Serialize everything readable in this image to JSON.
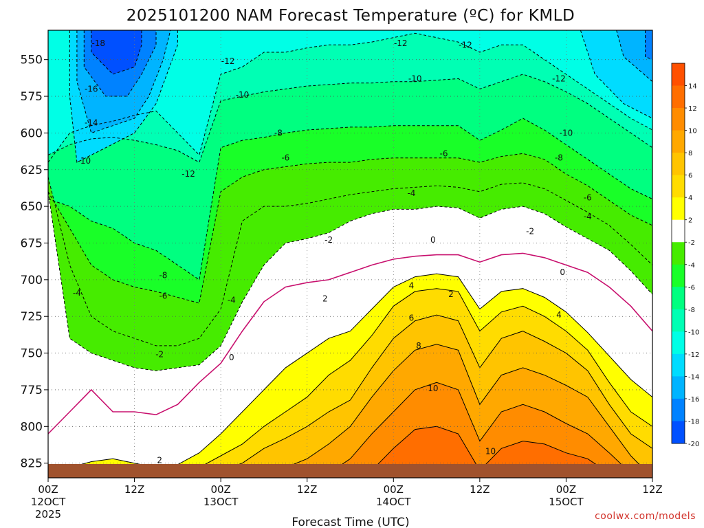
{
  "chart_data": {
    "type": "contour",
    "title": "2025101200 NAM Forecast Temperature (ºC) for KMLD",
    "xlabel": "Forecast Time (UTC)",
    "ylabel": "",
    "credit": "coolwx.com/models",
    "x_hours": [
      0,
      84
    ],
    "x_ticks": [
      {
        "hour": 0,
        "time": "00Z",
        "day": "12OCT",
        "year": "2025"
      },
      {
        "hour": 12,
        "time": "12Z",
        "day": "",
        "year": ""
      },
      {
        "hour": 24,
        "time": "00Z",
        "day": "13OCT",
        "year": ""
      },
      {
        "hour": 36,
        "time": "12Z",
        "day": "",
        "year": ""
      },
      {
        "hour": 48,
        "time": "00Z",
        "day": "14OCT",
        "year": ""
      },
      {
        "hour": 60,
        "time": "12Z",
        "day": "",
        "year": ""
      },
      {
        "hour": 72,
        "time": "00Z",
        "day": "15OCT",
        "year": ""
      },
      {
        "hour": 84,
        "time": "12Z",
        "day": "",
        "year": ""
      }
    ],
    "p_range": [
      530,
      835
    ],
    "p_ticks": [
      "550",
      "575",
      "600",
      "625",
      "650",
      "675",
      "700",
      "725",
      "750",
      "775",
      "800",
      "825"
    ],
    "temp_levels": [
      -20,
      -18,
      -16,
      -14,
      -12,
      -10,
      -8,
      -6,
      -4,
      -2,
      2,
      4,
      6,
      8,
      10,
      12,
      14
    ],
    "colorbar_labels": [
      "14",
      "12",
      "10",
      "8",
      "6",
      "4",
      "2",
      "-2",
      "-4",
      "-6",
      "-8",
      "-10",
      "-12",
      "-14",
      "-16",
      "-18",
      "-20"
    ],
    "colorbar_colors": [
      "#ff5000",
      "#ff6e00",
      "#ff8c00",
      "#ffa800",
      "#ffc400",
      "#ffdc00",
      "#ffff00",
      "#ffffff",
      "#46ec00",
      "#19ff28",
      "#00ff80",
      "#00ffb4",
      "#00ffe6",
      "#00dcff",
      "#00b4ff",
      "#0082ff",
      "#0050ff"
    ],
    "sample_hours": [
      0,
      3,
      6,
      9,
      12,
      15,
      18,
      21,
      24,
      27,
      30,
      33,
      36,
      39,
      42,
      45,
      48,
      51,
      54,
      57,
      60,
      63,
      66,
      69,
      72,
      75,
      78,
      81,
      84
    ],
    "isotherm_pressure": {
      "-12": [
        620,
        600,
        595,
        592,
        588,
        585,
        600,
        615,
        560,
        555,
        545,
        545,
        542,
        540,
        540,
        538,
        535,
        532,
        535,
        538,
        545,
        540,
        540,
        550,
        560,
        570,
        580,
        590,
        598
      ],
      "-10": [
        615,
        608,
        604,
        603,
        605,
        608,
        612,
        620,
        578,
        575,
        572,
        570,
        568,
        567,
        566,
        566,
        565,
        565,
        564,
        563,
        570,
        565,
        560,
        565,
        572,
        580,
        590,
        600,
        610
      ],
      "-8": [
        645,
        650,
        660,
        665,
        675,
        680,
        690,
        700,
        610,
        605,
        603,
        600,
        598,
        597,
        596,
        596,
        595,
        595,
        595,
        595,
        605,
        598,
        590,
        598,
        608,
        618,
        628,
        638,
        645
      ],
      "-6": [
        640,
        665,
        690,
        700,
        705,
        708,
        712,
        716,
        640,
        630,
        625,
        623,
        621,
        620,
        620,
        618,
        617,
        617,
        617,
        617,
        620,
        616,
        614,
        618,
        628,
        636,
        646,
        656,
        663
      ],
      "-4": [
        630,
        690,
        725,
        735,
        740,
        745,
        745,
        740,
        720,
        660,
        650,
        650,
        648,
        645,
        642,
        640,
        638,
        637,
        636,
        637,
        640,
        635,
        634,
        638,
        646,
        654,
        663,
        676,
        690
      ],
      "-2": [
        640,
        740,
        750,
        755,
        760,
        762,
        760,
        758,
        745,
        715,
        690,
        675,
        672,
        668,
        660,
        655,
        652,
        652,
        650,
        651,
        658,
        652,
        650,
        655,
        664,
        672,
        680,
        694,
        710
      ],
      "0": [
        805,
        790,
        775,
        790,
        790,
        792,
        785,
        770,
        757,
        735,
        715,
        705,
        702,
        700,
        695,
        690,
        686,
        684,
        683,
        683,
        688,
        683,
        682,
        685,
        690,
        695,
        705,
        718,
        735
      ],
      "2": [
        832,
        828,
        824,
        822,
        825,
        828,
        826,
        818,
        805,
        790,
        775,
        760,
        750,
        740,
        735,
        720,
        705,
        698,
        696,
        698,
        720,
        708,
        706,
        712,
        722,
        736,
        752,
        768,
        780
      ],
      "4": [
        840,
        840,
        840,
        840,
        840,
        840,
        836,
        828,
        820,
        812,
        800,
        790,
        780,
        765,
        755,
        738,
        718,
        708,
        706,
        708,
        735,
        722,
        718,
        725,
        735,
        748,
        770,
        790,
        800
      ],
      "6": [
        840,
        840,
        840,
        840,
        840,
        840,
        840,
        840,
        830,
        825,
        815,
        808,
        800,
        790,
        782,
        760,
        740,
        728,
        724,
        728,
        760,
        740,
        735,
        742,
        750,
        762,
        785,
        805,
        815
      ],
      "8": [
        840,
        840,
        840,
        840,
        840,
        840,
        840,
        840,
        840,
        840,
        835,
        828,
        822,
        812,
        800,
        780,
        762,
        748,
        744,
        748,
        785,
        765,
        760,
        765,
        772,
        780,
        800,
        820,
        835
      ],
      "10": [
        840,
        840,
        840,
        840,
        840,
        840,
        840,
        840,
        840,
        840,
        840,
        840,
        840,
        832,
        822,
        805,
        790,
        775,
        770,
        775,
        810,
        790,
        785,
        790,
        798,
        805,
        818,
        832,
        840
      ],
      "12": [
        840,
        840,
        840,
        840,
        840,
        840,
        840,
        840,
        840,
        840,
        840,
        840,
        840,
        840,
        840,
        830,
        815,
        802,
        800,
        805,
        830,
        815,
        810,
        812,
        818,
        822,
        832,
        840,
        840
      ],
      "14": [
        840,
        840,
        840,
        840,
        840,
        840,
        840,
        840,
        840,
        840,
        840,
        840,
        840,
        840,
        840,
        840,
        835,
        830,
        828,
        832,
        840,
        836,
        832,
        832,
        835,
        838,
        840,
        840,
        840
      ]
    },
    "contour_labels": [
      {
        "text": "-18",
        "hour": 7,
        "p": 539
      },
      {
        "text": "-16",
        "hour": 6,
        "p": 570
      },
      {
        "text": "-14",
        "hour": 6,
        "p": 593
      },
      {
        "text": "-10",
        "hour": 5,
        "p": 619
      },
      {
        "text": "-12",
        "hour": 19.5,
        "p": 628
      },
      {
        "text": "-12",
        "hour": 25,
        "p": 551
      },
      {
        "text": "-10",
        "hour": 27,
        "p": 574
      },
      {
        "text": "-8",
        "hour": 32,
        "p": 600
      },
      {
        "text": "-6",
        "hour": 33,
        "p": 617
      },
      {
        "text": "-4",
        "hour": 50.5,
        "p": 641
      },
      {
        "text": "-6",
        "hour": 55,
        "p": 614
      },
      {
        "text": "-10",
        "hour": 51,
        "p": 563
      },
      {
        "text": "-12",
        "hour": 49,
        "p": 539
      },
      {
        "text": "-12",
        "hour": 58,
        "p": 540
      },
      {
        "text": "-12",
        "hour": 71,
        "p": 563
      },
      {
        "text": "-10",
        "hour": 72,
        "p": 600
      },
      {
        "text": "-8",
        "hour": 71,
        "p": 617
      },
      {
        "text": "-6",
        "hour": 75,
        "p": 644
      },
      {
        "text": "-4",
        "hour": 75,
        "p": 657
      },
      {
        "text": "-2",
        "hour": 67,
        "p": 667
      },
      {
        "text": "-8",
        "hour": 16,
        "p": 697
      },
      {
        "text": "-6",
        "hour": 16,
        "p": 711
      },
      {
        "text": "-4",
        "hour": 4,
        "p": 709
      },
      {
        "text": "-4",
        "hour": 25.5,
        "p": 714
      },
      {
        "text": "-2",
        "hour": 15.5,
        "p": 751
      },
      {
        "text": "-2",
        "hour": 39,
        "p": 673
      },
      {
        "text": "0",
        "hour": 25.5,
        "p": 753
      },
      {
        "text": "0",
        "hour": 53.5,
        "p": 673
      },
      {
        "text": "0",
        "hour": 71.5,
        "p": 695
      },
      {
        "text": "2",
        "hour": 15.5,
        "p": 823
      },
      {
        "text": "2",
        "hour": 38.5,
        "p": 713
      },
      {
        "text": "2",
        "hour": 56,
        "p": 710
      },
      {
        "text": "4",
        "hour": 50.5,
        "p": 704
      },
      {
        "text": "4",
        "hour": 71,
        "p": 724
      },
      {
        "text": "6",
        "hour": 50.5,
        "p": 726
      },
      {
        "text": "8",
        "hour": 51.5,
        "p": 745
      },
      {
        "text": "10",
        "hour": 53.5,
        "p": 774
      },
      {
        "text": "10",
        "hour": 61.5,
        "p": 817
      }
    ]
  }
}
